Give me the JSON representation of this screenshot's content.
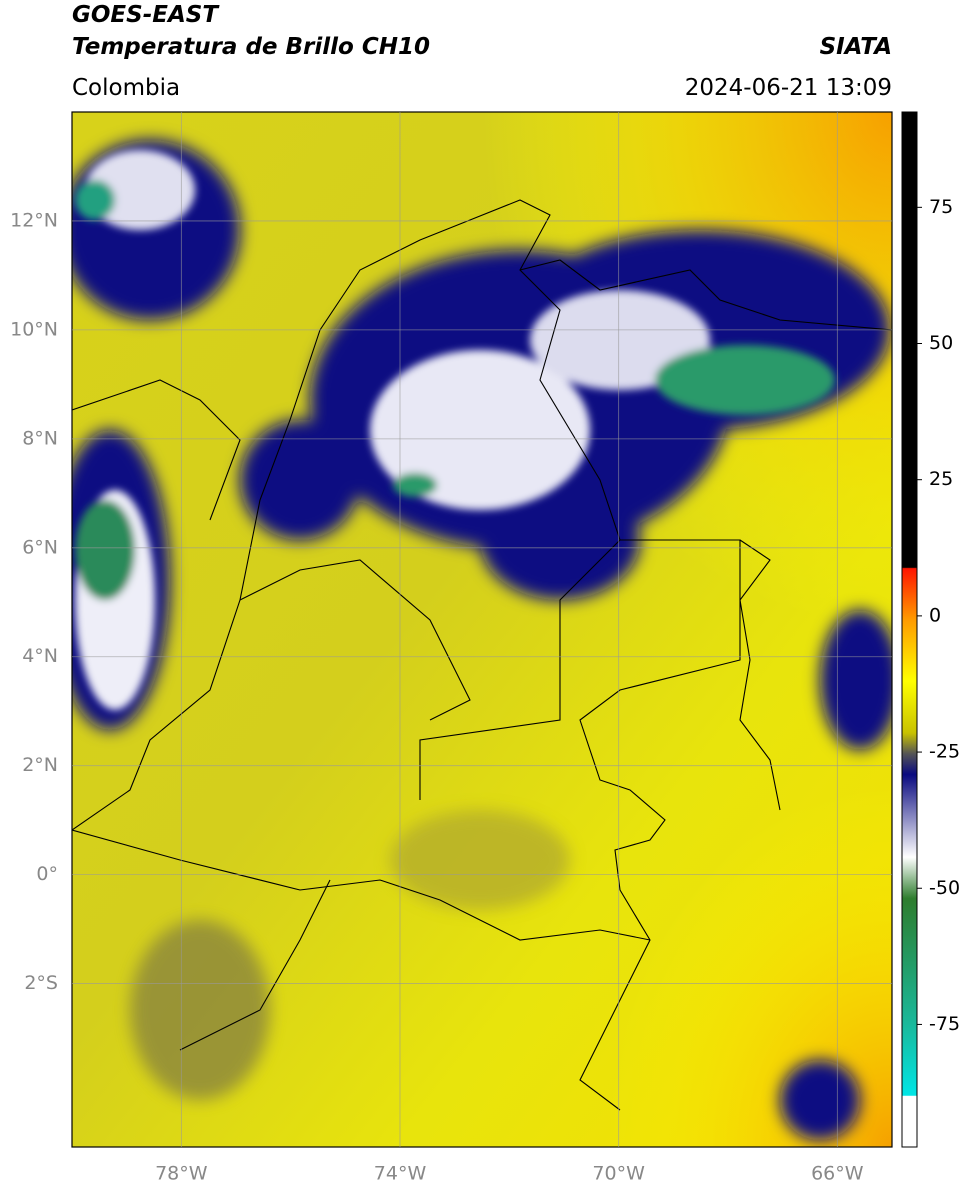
{
  "header": {
    "satellite": "GOES-EAST",
    "product": "Temperatura de Brillo CH10",
    "source": "SIATA",
    "region": "Colombia",
    "datetime": "2024-06-21 13:09"
  },
  "map": {
    "latlim": [
      -5,
      14
    ],
    "lonlim": [
      -80,
      -65
    ],
    "lat_ticks": [
      {
        "value": 12,
        "label": "12°N"
      },
      {
        "value": 10,
        "label": "10°N"
      },
      {
        "value": 8,
        "label": "8°N"
      },
      {
        "value": 6,
        "label": "6°N"
      },
      {
        "value": 4,
        "label": "4°N"
      },
      {
        "value": 2,
        "label": "2°N"
      },
      {
        "value": 0,
        "label": "0°"
      },
      {
        "value": -2,
        "label": "2°S"
      }
    ],
    "lon_ticks": [
      {
        "value": -78,
        "label": "78°W"
      },
      {
        "value": -74,
        "label": "74°W"
      },
      {
        "value": -70,
        "label": "70°W"
      },
      {
        "value": -66,
        "label": "66°W"
      }
    ]
  },
  "colorbar": {
    "lim": [
      -97.5,
      92.5
    ],
    "ticks": [
      75,
      50,
      25,
      0,
      -25,
      -50,
      -75
    ]
  }
}
